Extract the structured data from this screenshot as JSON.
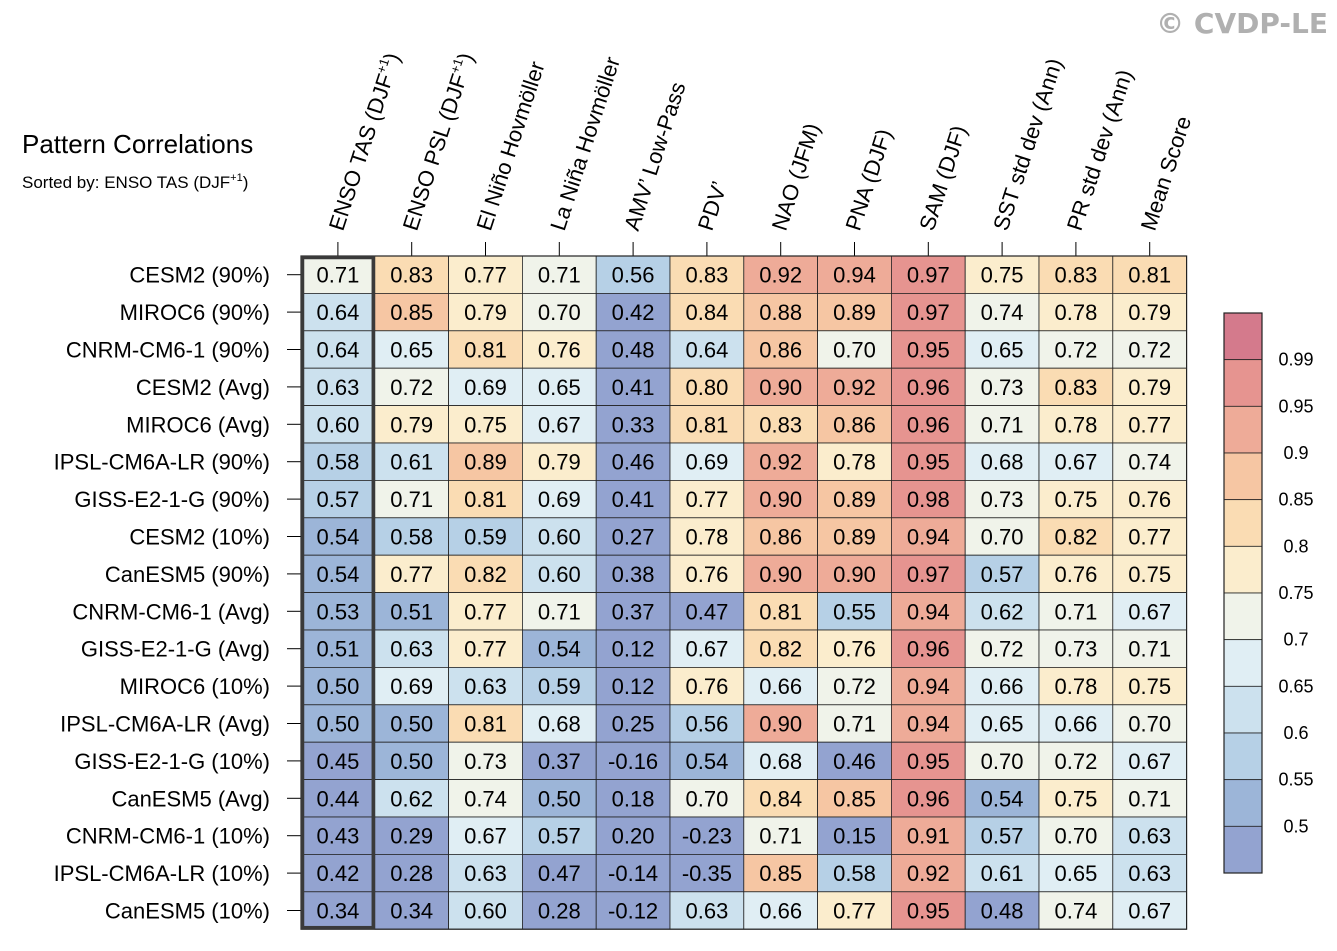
{
  "watermark": "© CVDP-LE",
  "chart_data": {
    "type": "heatmap",
    "title": "Pattern Correlations",
    "subtitle_prefix": "Sorted by: ENSO TAS (DJF",
    "subtitle_sup": "+1",
    "subtitle_suffix": ")",
    "columns": [
      {
        "label": "ENSO TAS (DJF",
        "sup": "+1",
        "suffix": ")"
      },
      {
        "label": "ENSO PSL (DJF",
        "sup": "+1",
        "suffix": ")"
      },
      {
        "label": "El Niño Hovmöller"
      },
      {
        "label": "La Niña Hovmöller"
      },
      {
        "label": "AMV’ Low-Pass"
      },
      {
        "label": "PDV’"
      },
      {
        "label": "NAO (JFM)"
      },
      {
        "label": "PNA (DJF)"
      },
      {
        "label": "SAM (DJF)"
      },
      {
        "label": "SST std dev (Ann)"
      },
      {
        "label": "PR std dev (Ann)"
      },
      {
        "label": "Mean Score"
      }
    ],
    "rows": [
      "CESM2 (90%)",
      "MIROC6 (90%)",
      "CNRM-CM6-1 (90%)",
      "CESM2 (Avg)",
      "MIROC6 (Avg)",
      "IPSL-CM6A-LR (90%)",
      "GISS-E2-1-G (90%)",
      "CESM2 (10%)",
      "CanESM5 (90%)",
      "CNRM-CM6-1 (Avg)",
      "GISS-E2-1-G (Avg)",
      "MIROC6 (10%)",
      "IPSL-CM6A-LR (Avg)",
      "GISS-E2-1-G (10%)",
      "CanESM5 (Avg)",
      "CNRM-CM6-1 (10%)",
      "IPSL-CM6A-LR (10%)",
      "CanESM5 (10%)"
    ],
    "values": [
      [
        "0.71",
        "0.83",
        "0.77",
        "0.71",
        "0.56",
        "0.83",
        "0.92",
        "0.94",
        "0.97",
        "0.75",
        "0.83",
        "0.81"
      ],
      [
        "0.64",
        "0.85",
        "0.79",
        "0.70",
        "0.42",
        "0.84",
        "0.88",
        "0.89",
        "0.97",
        "0.74",
        "0.78",
        "0.79"
      ],
      [
        "0.64",
        "0.65",
        "0.81",
        "0.76",
        "0.48",
        "0.64",
        "0.86",
        "0.70",
        "0.95",
        "0.65",
        "0.72",
        "0.72"
      ],
      [
        "0.63",
        "0.72",
        "0.69",
        "0.65",
        "0.41",
        "0.80",
        "0.90",
        "0.92",
        "0.96",
        "0.73",
        "0.83",
        "0.79"
      ],
      [
        "0.60",
        "0.79",
        "0.75",
        "0.67",
        "0.33",
        "0.81",
        "0.83",
        "0.86",
        "0.96",
        "0.71",
        "0.78",
        "0.77"
      ],
      [
        "0.58",
        "0.61",
        "0.89",
        "0.79",
        "0.46",
        "0.69",
        "0.92",
        "0.78",
        "0.95",
        "0.68",
        "0.67",
        "0.74"
      ],
      [
        "0.57",
        "0.71",
        "0.81",
        "0.69",
        "0.41",
        "0.77",
        "0.90",
        "0.89",
        "0.98",
        "0.73",
        "0.75",
        "0.76"
      ],
      [
        "0.54",
        "0.58",
        "0.59",
        "0.60",
        "0.27",
        "0.78",
        "0.86",
        "0.89",
        "0.94",
        "0.70",
        "0.82",
        "0.77"
      ],
      [
        "0.54",
        "0.77",
        "0.82",
        "0.60",
        "0.38",
        "0.76",
        "0.90",
        "0.90",
        "0.97",
        "0.57",
        "0.76",
        "0.75"
      ],
      [
        "0.53",
        "0.51",
        "0.77",
        "0.71",
        "0.37",
        "0.47",
        "0.81",
        "0.55",
        "0.94",
        "0.62",
        "0.71",
        "0.67"
      ],
      [
        "0.51",
        "0.63",
        "0.77",
        "0.54",
        "0.12",
        "0.67",
        "0.82",
        "0.76",
        "0.96",
        "0.72",
        "0.73",
        "0.71"
      ],
      [
        "0.50",
        "0.69",
        "0.63",
        "0.59",
        "0.12",
        "0.76",
        "0.66",
        "0.72",
        "0.94",
        "0.66",
        "0.78",
        "0.75"
      ],
      [
        "0.50",
        "0.50",
        "0.81",
        "0.68",
        "0.25",
        "0.56",
        "0.90",
        "0.71",
        "0.94",
        "0.65",
        "0.66",
        "0.70"
      ],
      [
        "0.45",
        "0.50",
        "0.73",
        "0.37",
        "-0.16",
        "0.54",
        "0.68",
        "0.46",
        "0.95",
        "0.70",
        "0.72",
        "0.67"
      ],
      [
        "0.44",
        "0.62",
        "0.74",
        "0.50",
        "0.18",
        "0.70",
        "0.84",
        "0.85",
        "0.96",
        "0.54",
        "0.75",
        "0.71"
      ],
      [
        "0.43",
        "0.29",
        "0.67",
        "0.57",
        "0.20",
        "-0.23",
        "0.71",
        "0.15",
        "0.91",
        "0.57",
        "0.70",
        "0.63"
      ],
      [
        "0.42",
        "0.28",
        "0.63",
        "0.47",
        "-0.14",
        "-0.35",
        "0.85",
        "0.58",
        "0.92",
        "0.61",
        "0.65",
        "0.63"
      ],
      [
        "0.34",
        "0.34",
        "0.60",
        "0.28",
        "-0.12",
        "0.63",
        "0.66",
        "0.77",
        "0.95",
        "0.48",
        "0.74",
        "0.67"
      ]
    ],
    "highlighted_column": "ENSO TAS (DJF+1)",
    "colorbar": {
      "labels": [
        "0.99",
        "0.95",
        "0.9",
        "0.85",
        "0.8",
        "0.75",
        "0.7",
        "0.65",
        "0.6",
        "0.55",
        "0.5"
      ],
      "bins": [
        {
          "min": 0.99,
          "color": "#d47a8c"
        },
        {
          "min": 0.95,
          "color": "#e69490"
        },
        {
          "min": 0.9,
          "color": "#eeab98"
        },
        {
          "min": 0.85,
          "color": "#f6c6a3"
        },
        {
          "min": 0.8,
          "color": "#fadcb3"
        },
        {
          "min": 0.75,
          "color": "#fbedcd"
        },
        {
          "min": 0.7,
          "color": "#f0f3ea"
        },
        {
          "min": 0.65,
          "color": "#e0eef4"
        },
        {
          "min": 0.6,
          "color": "#cce1ee"
        },
        {
          "min": 0.55,
          "color": "#b6d0e6"
        },
        {
          "min": 0.5,
          "color": "#9cb5d8"
        },
        {
          "min": -1.0,
          "color": "#93a3d0"
        }
      ]
    }
  }
}
